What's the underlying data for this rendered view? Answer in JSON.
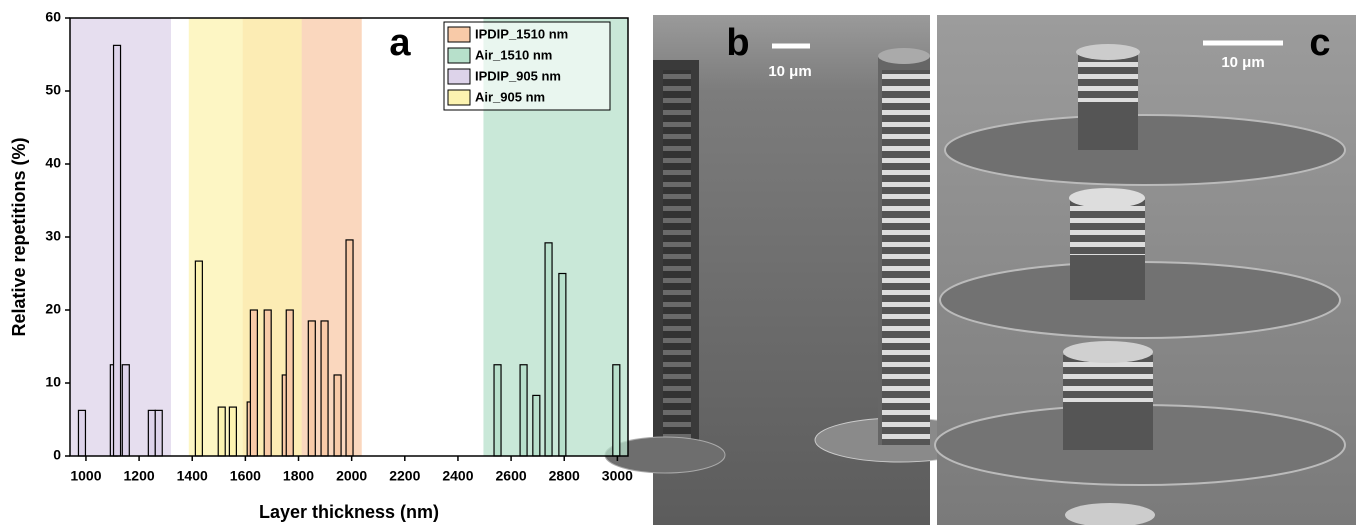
{
  "chart_data": {
    "type": "bar",
    "panel_label": "a",
    "x_label": "Layer thickness (nm)",
    "y_label": "Relative repetitions (%)",
    "xlim": [
      940,
      3040
    ],
    "ylim": [
      0,
      60
    ],
    "xticks": [
      1000,
      1200,
      1400,
      1600,
      1800,
      2000,
      2200,
      2400,
      2600,
      2800,
      3000
    ],
    "yticks": [
      0,
      10,
      20,
      30,
      40,
      50,
      60
    ],
    "legend": "upper right",
    "series": [
      {
        "name": "IPDIP_1510 nm",
        "color": "#f8caa8",
        "range": [
          1590,
          2038
        ],
        "x": [
          1620,
          1632,
          1684,
          1752,
          1767,
          1850,
          1898,
          1947,
          1992
        ],
        "values": [
          7.4,
          20,
          20,
          11.1,
          20,
          18.5,
          18.5,
          11.1,
          29.6
        ]
      },
      {
        "name": "Air_1510 nm",
        "color": "#b7e0cb",
        "range": [
          2496,
          3040
        ],
        "x": [
          2549,
          2647,
          2695,
          2741,
          2793,
          2996
        ],
        "values": [
          12.5,
          12.5,
          8.3,
          29.2,
          25,
          12.5
        ]
      },
      {
        "name": "IPDIP_905 nm",
        "color": "#ddd3ea",
        "range": [
          940,
          1320
        ],
        "x": [
          985,
          1105,
          1117,
          1150,
          1248,
          1274
        ],
        "values": [
          6.25,
          12.5,
          56.25,
          12.5,
          6.25,
          6.25
        ]
      },
      {
        "name": "Air_905 nm",
        "color": "#fcf3b0",
        "range": [
          1387,
          1812
        ],
        "x": [
          1425,
          1511,
          1553
        ],
        "values": [
          26.7,
          6.7,
          6.7
        ]
      }
    ]
  },
  "panels": [
    {
      "label": "b",
      "scale_bar": "10 μm"
    },
    {
      "label": "c",
      "scale_bar": "10 μm"
    }
  ]
}
